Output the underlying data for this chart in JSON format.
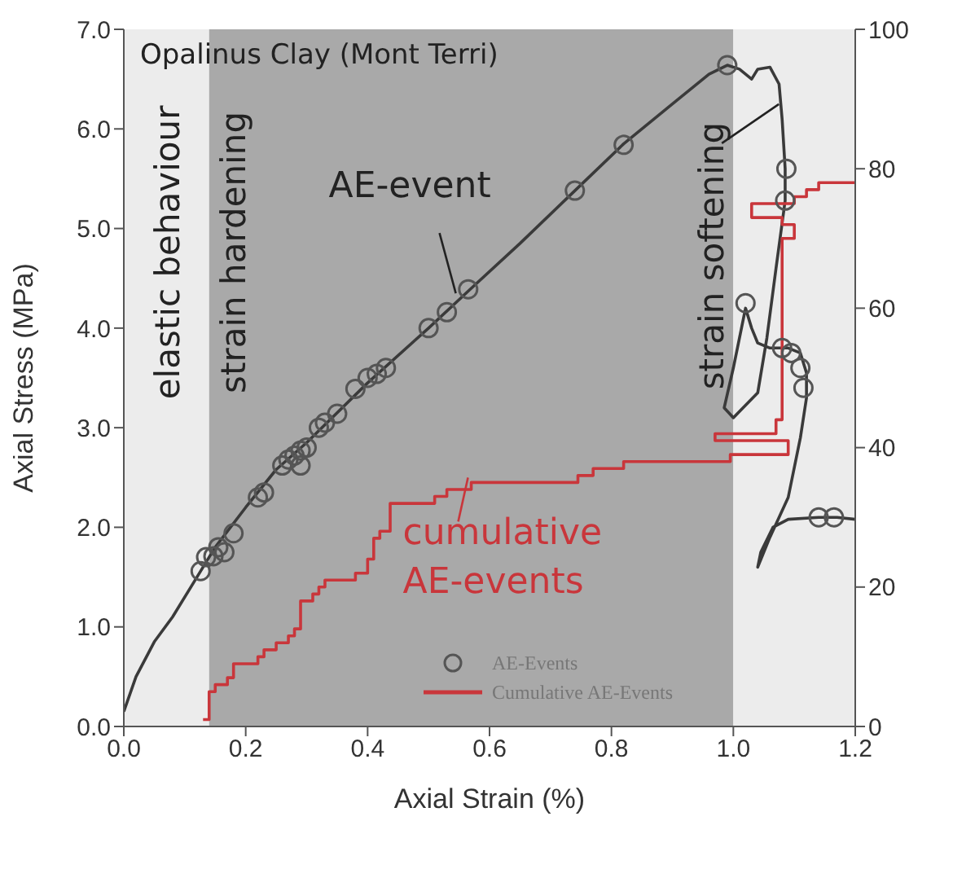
{
  "chart_data": {
    "type": "line",
    "title": "Opalinus Clay (Mont Terri)",
    "xlabel": "Axial Strain (%)",
    "ylabel": "Axial Stress (MPa)",
    "xlim": [
      0,
      1.2
    ],
    "xticks": [
      {
        "value": 0,
        "label": "0.0"
      },
      {
        "value": 0.2,
        "label": "0.2"
      },
      {
        "value": 0.4,
        "label": "0.4"
      },
      {
        "value": 0.6,
        "label": "0.6"
      },
      {
        "value": 0.8,
        "label": "0.8"
      },
      {
        "value": 1,
        "label": "1.0"
      },
      {
        "value": 1.2,
        "label": "1.2"
      }
    ],
    "ylim": [
      0,
      7
    ],
    "yticks": [
      {
        "value": 0,
        "label": "0.0"
      },
      {
        "value": 1,
        "label": "1.0"
      },
      {
        "value": 2,
        "label": "2.0"
      },
      {
        "value": 3,
        "label": "3.0"
      },
      {
        "value": 4,
        "label": "4.0"
      },
      {
        "value": 5,
        "label": "5.0"
      },
      {
        "value": 6,
        "label": "6.0"
      },
      {
        "value": 7,
        "label": "7.0"
      }
    ],
    "y2lim": [
      0,
      100
    ],
    "y2ticks": [
      0,
      20,
      40,
      60,
      80,
      100
    ],
    "legend": "bottom right",
    "bands": [
      {
        "axis": "x",
        "from": 0,
        "to": 0.14,
        "label": "elastic behaviour",
        "color": "#ececec"
      },
      {
        "axis": "x",
        "from": 0.14,
        "to": 1.0,
        "label": "strain hardening",
        "color": "#a9a9a9"
      },
      {
        "axis": "x",
        "from": 1.0,
        "to": 1.2,
        "label": null,
        "color": "#ececec"
      }
    ],
    "annotations": [
      {
        "text": "AE-event",
        "x": 0.55,
        "y": 4.3
      },
      {
        "text": "strain softening",
        "x": 1.08,
        "y": 6.2
      },
      {
        "text": "cumulative AE-events",
        "x": 0.57,
        "y": 2.45
      }
    ],
    "series": [
      {
        "color": "#3a3a3a",
        "marker": "none",
        "x": [
          0,
          0.02,
          0.05,
          0.08,
          0.12,
          0.15,
          0.2,
          0.25,
          0.3,
          0.4,
          0.5,
          0.57,
          0.65,
          0.74,
          0.82,
          0.9,
          0.96,
          0.99,
          1.01,
          1.03,
          1.04,
          1.06,
          1.075,
          1.08,
          1.085,
          1.085,
          1.07,
          1.055,
          1.04,
          1.0,
          0.985,
          1.0,
          1.02,
          1.03,
          1.04,
          1.06,
          1.09,
          1.11,
          1.12,
          1.12,
          1.11,
          1.09,
          1.06,
          1.04,
          1.045,
          1.065,
          1.09,
          1.14,
          1.17,
          1.2
        ],
        "values": [
          0.15,
          0.5,
          0.85,
          1.1,
          1.5,
          1.8,
          2.2,
          2.58,
          2.85,
          3.45,
          4.0,
          4.4,
          4.85,
          5.38,
          5.85,
          6.25,
          6.55,
          6.64,
          6.6,
          6.5,
          6.6,
          6.62,
          6.45,
          6.1,
          5.6,
          5.28,
          4.6,
          3.9,
          3.35,
          3.1,
          3.2,
          3.6,
          4.2,
          4.0,
          3.85,
          3.8,
          3.8,
          3.75,
          3.55,
          3.3,
          2.9,
          2.3,
          1.9,
          1.6,
          1.75,
          2.0,
          2.08,
          2.1,
          2.1,
          2.08
        ]
      },
      {
        "type": "scatter",
        "name": "AE-Events",
        "color": "#555555",
        "marker": "circle",
        "x": [
          0.126,
          0.135,
          0.147,
          0.155,
          0.165,
          0.18,
          0.22,
          0.23,
          0.26,
          0.27,
          0.28,
          0.29,
          0.29,
          0.3,
          0.32,
          0.33,
          0.35,
          0.38,
          0.4,
          0.415,
          0.43,
          0.5,
          0.53,
          0.565,
          0.74,
          0.82,
          0.99,
          1.087,
          1.085,
          1.02,
          1.08,
          1.095,
          1.11,
          1.115,
          1.14,
          1.165
        ],
        "values": [
          1.56,
          1.7,
          1.71,
          1.8,
          1.75,
          1.94,
          2.3,
          2.35,
          2.62,
          2.68,
          2.72,
          2.77,
          2.62,
          2.8,
          3.0,
          3.05,
          3.14,
          3.39,
          3.5,
          3.54,
          3.6,
          4.0,
          4.16,
          4.39,
          5.38,
          5.84,
          6.64,
          5.6,
          5.28,
          4.25,
          3.8,
          3.75,
          3.6,
          3.4,
          2.1,
          2.1
        ]
      },
      {
        "type": "step",
        "name": "Cumulative AE-Events",
        "color": "#c9363b",
        "axis": "y2",
        "x": [
          0.13,
          0.14,
          0.15,
          0.17,
          0.18,
          0.22,
          0.23,
          0.25,
          0.27,
          0.28,
          0.29,
          0.31,
          0.32,
          0.33,
          0.38,
          0.4,
          0.41,
          0.42,
          0.437,
          0.51,
          0.53,
          0.57,
          0.745,
          0.77,
          0.82,
          0.995,
          1.09,
          0.97,
          1.07,
          1.08,
          1.1,
          1.08,
          1.03,
          1.1,
          1.12,
          1.14,
          1.2
        ],
        "values": [
          1,
          5,
          6,
          7,
          9,
          10,
          11,
          12,
          13,
          14,
          18,
          19,
          20,
          21,
          22,
          24,
          27,
          28,
          32,
          33,
          34,
          35,
          36,
          37,
          38,
          39,
          41,
          42,
          44,
          70,
          72,
          73,
          75,
          76,
          77,
          78,
          78
        ]
      }
    ]
  }
}
